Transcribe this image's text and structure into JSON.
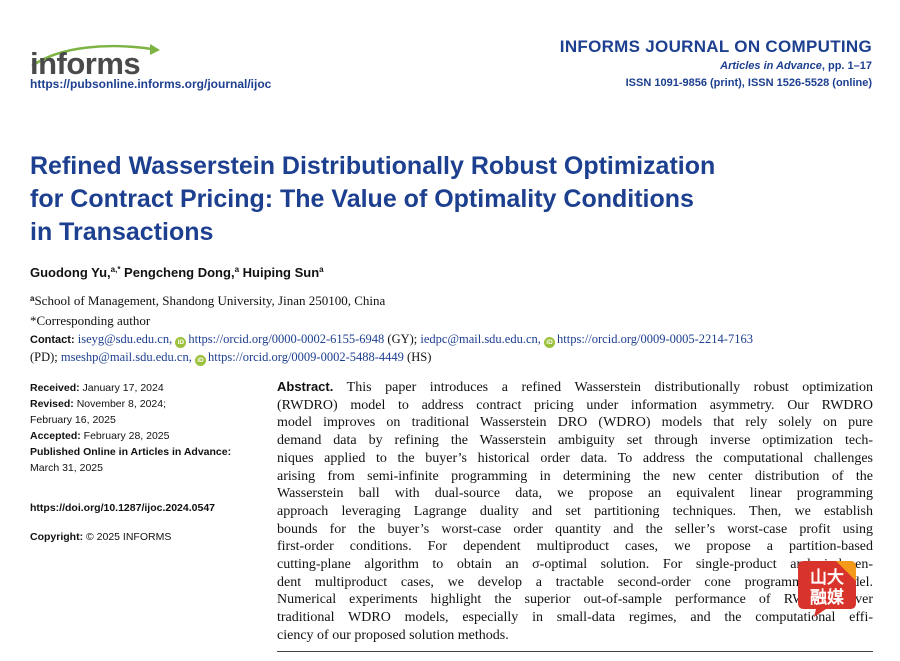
{
  "header": {
    "logo_text": "informs",
    "journal_url": "https://pubsonline.informs.org/journal/ijoc",
    "journal_name": "INFORMS JOURNAL ON COMPUTING",
    "articles_label": "Articles in Advance",
    "pages": ", pp. 1–17",
    "issn": "ISSN 1091-9856 (print), ISSN 1526-5528 (online)"
  },
  "title_lines": [
    "Refined Wasserstein Distributionally Robust Optimization",
    "for Contract Pricing: The Value of Optimality Conditions",
    "in Transactions"
  ],
  "authors": {
    "a1": "Guodong Yu,",
    "a1_sup": "a,*",
    "a2": " Pengcheng Dong,",
    "a2_sup": "a",
    "a3": " Huiping Sun",
    "a3_sup": "a"
  },
  "affiliation": {
    "sup": "a",
    "text": "School of Management, Shandong University, Jinan 250100, China"
  },
  "corresponding": "*Corresponding author",
  "contact": {
    "label": "Contact:",
    "e1": "iseyg@sdu.edu.cn,",
    "o1": "https://orcid.org/0000-0002-6155-6948",
    "o1_tag": " (GY);",
    "e2": "iedpc@mail.sdu.edu.cn,",
    "o2": "https://orcid.org/0009-0005-2214-7163",
    "o2_tag": "(PD);",
    "e3": "mseshp@mail.sdu.edu.cn,",
    "o3": "https://orcid.org/0009-0002-5488-4449",
    "o3_tag": " (HS)",
    "orcid_icon": "iD"
  },
  "dates": {
    "received_label": "Received:",
    "received": " January 17, 2024",
    "revised_label": "Revised:",
    "revised_1": " November 8, 2024;",
    "revised_2": "February 16, 2025",
    "accepted_label": "Accepted:",
    "accepted": " February 28, 2025",
    "published_label": "Published Online in Articles in Advance:",
    "published": "March 31, 2025"
  },
  "doi": "https://doi.org/10.1287/ijoc.2024.0547",
  "copyright": {
    "label": "Copyright:",
    "text": " © 2025 INFORMS"
  },
  "abstract": {
    "label": "Abstract.",
    "lines": [
      " This paper introduces a refined Wasserstein distributionally robust optimization",
      "(RWDRO) model to address contract pricing under information asymmetry. Our RWDRO",
      "model improves on traditional Wasserstein DRO (WDRO) models that rely solely on pure",
      "demand data by refining the Wasserstein ambiguity set through inverse optimization tech-",
      "niques applied to the buyer’s historical order data. To address the computational challenges",
      "arising from semi-infinite programming in determining the new center distribution of the",
      "Wasserstein ball with dual-source data, we propose an equivalent linear programming",
      "approach leveraging Lagrange duality and set partitioning techniques. Then, we establish",
      "bounds for the buyer’s worst-case order quantity and the seller’s worst-case profit using",
      "first-order conditions. For dependent multiproduct cases, we propose a partition-based",
      "cutting-plane algorithm to obtain an σ-optimal solution. For single-product and indepen-",
      "dent multiproduct cases, we develop a tractable second-order cone programming model.",
      "Numerical experiments highlight the superior out-of-sample performance of RWDRO over",
      "traditional WDRO models, especially in small-data regimes, and the computational effi-",
      "ciency of our proposed solution methods."
    ]
  },
  "watermark": {
    "line1": "山大",
    "line2": "融媒"
  },
  "colors": {
    "brand_blue": "#1d3f8f",
    "orcid_green": "#9bc13c",
    "logo_green": "#7cb342",
    "watermark_red": "#d9342b",
    "watermark_orange": "#f39a1b"
  }
}
